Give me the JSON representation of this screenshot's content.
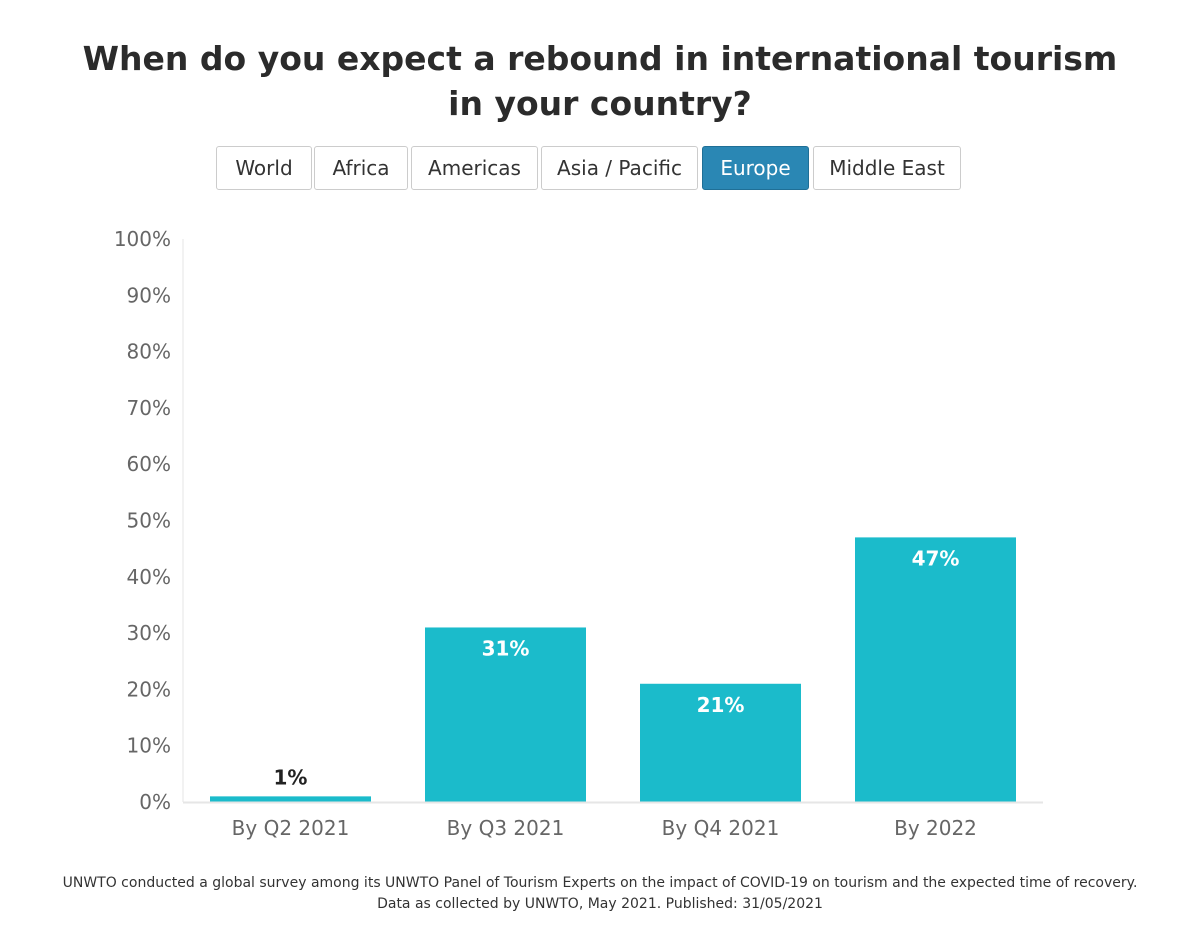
{
  "title": "When do you expect a rebound in international tourism in your country?",
  "tabs": [
    {
      "label": "World",
      "active": false
    },
    {
      "label": "Africa",
      "active": false
    },
    {
      "label": "Americas",
      "active": false
    },
    {
      "label": "Asia / Pacific",
      "active": false
    },
    {
      "label": "Europe",
      "active": true
    },
    {
      "label": "Middle East",
      "active": false
    }
  ],
  "colors": {
    "bar": "#1bbbcb",
    "active_tab": "#2a87b4",
    "label_inside": "#ffffff",
    "label_outside": "#222222"
  },
  "chart_data": {
    "type": "bar",
    "categories": [
      "By Q2 2021",
      "By Q3 2021",
      "By Q4 2021",
      "By 2022"
    ],
    "values": [
      1,
      31,
      21,
      47
    ],
    "data_labels": [
      "1%",
      "31%",
      "21%",
      "47%"
    ],
    "y_ticks": [
      "0%",
      "10%",
      "20%",
      "30%",
      "40%",
      "50%",
      "60%",
      "70%",
      "80%",
      "90%",
      "100%"
    ],
    "ylim": [
      0,
      100
    ],
    "grid": false,
    "legend": "none"
  },
  "footnote": {
    "line1": "UNWTO conducted a global survey among its UNWTO Panel of Tourism Experts on the impact of COVID-19 on tourism and the expected time of recovery.",
    "line2": "Data as collected by UNWTO, May 2021. Published: 31/05/2021"
  }
}
